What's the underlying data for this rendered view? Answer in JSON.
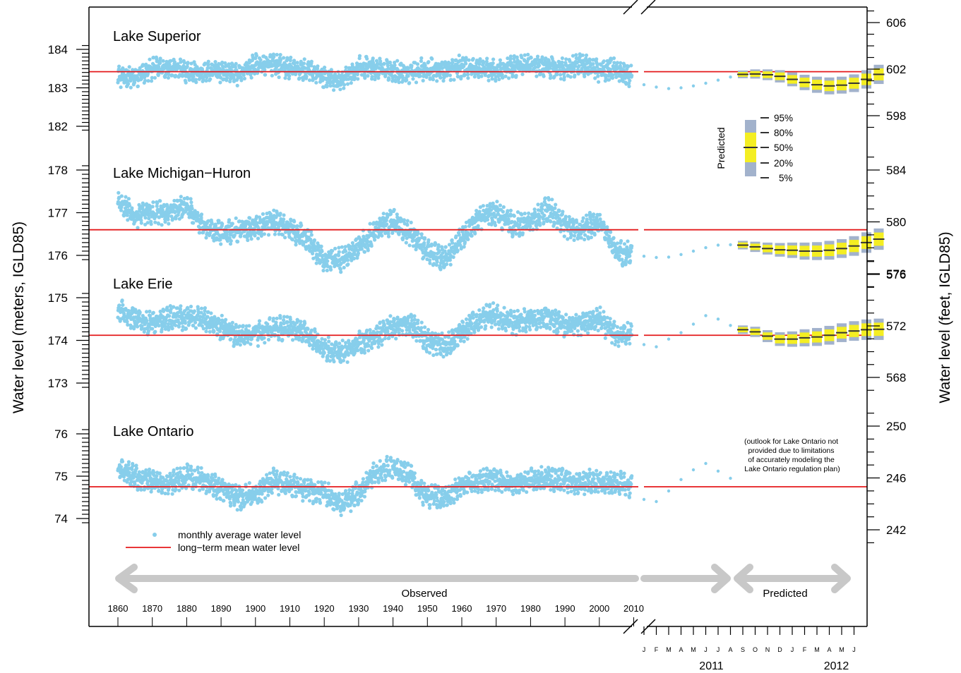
{
  "chart_data": {
    "type": "scatter",
    "ylabel_left": "Water level (meters, IGLD85)",
    "ylabel_right": "Water level (feet, IGLD85)",
    "x_years": {
      "start": 1860,
      "end": 2010,
      "tick_labels": [
        "1860",
        "1870",
        "1880",
        "1890",
        "1900",
        "1910",
        "1920",
        "1930",
        "1940",
        "1950",
        "1960",
        "1970",
        "1980",
        "1990",
        "2000",
        "2010"
      ]
    },
    "x_months": {
      "labels": [
        "J",
        "F",
        "M",
        "A",
        "M",
        "J",
        "J",
        "A",
        "S",
        "O",
        "N",
        "D",
        "J",
        "F",
        "M",
        "A",
        "M",
        "J"
      ],
      "year_labels": [
        "2011",
        "2012"
      ]
    },
    "phase_labels": {
      "observed": "Observed",
      "predicted": "Predicted"
    },
    "panels": [
      {
        "lake": "Lake Superior",
        "meter_ticks": [
          "182",
          "183",
          "184"
        ],
        "feet_ticks": [
          "598",
          "602",
          "606"
        ],
        "mean_m": 183.42,
        "observed_base_m": [
          183.3,
          183.25,
          183.5,
          183.55,
          183.4,
          183.4,
          183.45,
          183.35,
          183.6,
          183.6,
          183.5,
          183.45,
          183.3,
          183.15,
          183.55,
          183.5,
          183.45,
          183.4,
          183.5,
          183.45,
          183.55,
          183.5,
          183.45,
          183.55,
          183.6,
          183.55,
          183.5,
          183.6,
          183.45,
          183.5,
          183.25
        ],
        "observed_range_m": [
          182.8,
          184.0
        ],
        "outlook_2011_m": [
          183.08,
          183.02,
          182.98,
          183.0,
          183.05,
          183.12,
          183.2,
          183.28
        ],
        "predicted_m": [
          183.35,
          183.36,
          183.34,
          183.3,
          183.22,
          183.14,
          183.08,
          183.05,
          183.07,
          183.12,
          183.22,
          183.35
        ],
        "predicted_spread_m": [
          0.1,
          0.12,
          0.14,
          0.16,
          0.18,
          0.2,
          0.21,
          0.22,
          0.22,
          0.23,
          0.24,
          0.25
        ]
      },
      {
        "lake": "Lake Michigan−Huron",
        "meter_ticks": [
          "176",
          "177",
          "178"
        ],
        "feet_ticks": [
          "576",
          "580",
          "584"
        ],
        "mean_m": 176.6,
        "observed_base_m": [
          177.3,
          176.9,
          177.0,
          177.0,
          177.15,
          176.7,
          176.5,
          176.6,
          176.65,
          176.8,
          176.6,
          176.4,
          175.9,
          175.9,
          176.2,
          176.6,
          176.8,
          176.5,
          176.1,
          175.9,
          176.4,
          176.9,
          177.0,
          176.7,
          176.8,
          177.1,
          176.7,
          176.6,
          176.8,
          176.1,
          176.0
        ],
        "observed_range_m": [
          175.6,
          177.5
        ],
        "outlook_2011_m": [
          175.98,
          175.95,
          175.96,
          176.02,
          176.1,
          176.18,
          176.24,
          176.25
        ],
        "predicted_m": [
          176.24,
          176.2,
          176.16,
          176.13,
          176.12,
          176.1,
          176.1,
          176.12,
          176.16,
          176.22,
          176.3,
          176.38
        ],
        "predicted_spread_m": [
          0.1,
          0.12,
          0.14,
          0.16,
          0.18,
          0.2,
          0.21,
          0.22,
          0.22,
          0.23,
          0.24,
          0.25
        ]
      },
      {
        "lake": "Lake Erie",
        "meter_ticks": [
          "173",
          "174",
          "175"
        ],
        "feet_ticks": [
          "568",
          "572",
          "576"
        ],
        "mean_m": 174.12,
        "observed_base_m": [
          174.7,
          174.5,
          174.4,
          174.5,
          174.55,
          174.5,
          174.3,
          174.1,
          174.15,
          174.3,
          174.3,
          174.15,
          173.8,
          173.7,
          173.9,
          174.1,
          174.3,
          174.4,
          174.0,
          173.85,
          174.2,
          174.5,
          174.6,
          174.4,
          174.5,
          174.55,
          174.35,
          174.4,
          174.5,
          174.1,
          174.15
        ],
        "observed_range_m": [
          173.2,
          175.0
        ],
        "outlook_2011_m": [
          173.9,
          173.85,
          174.03,
          174.18,
          174.38,
          174.58,
          174.5,
          174.35
        ],
        "predicted_m": [
          174.25,
          174.2,
          174.1,
          174.03,
          174.03,
          174.06,
          174.08,
          174.12,
          174.18,
          174.22,
          174.25,
          174.26
        ],
        "predicted_spread_m": [
          0.1,
          0.12,
          0.14,
          0.16,
          0.18,
          0.2,
          0.21,
          0.22,
          0.22,
          0.23,
          0.24,
          0.25
        ]
      },
      {
        "lake": "Lake Ontario",
        "meter_ticks": [
          "74",
          "75",
          "76"
        ],
        "feet_ticks": [
          "242",
          "246",
          "250"
        ],
        "mean_m": 74.75,
        "observed_base_m": [
          75.2,
          75.0,
          74.9,
          74.8,
          75.0,
          74.9,
          74.7,
          74.5,
          74.55,
          74.9,
          74.8,
          74.7,
          74.6,
          74.3,
          74.6,
          75.1,
          75.2,
          75.0,
          74.5,
          74.5,
          74.8,
          74.9,
          74.95,
          74.8,
          74.9,
          74.95,
          74.9,
          74.85,
          74.9,
          74.8,
          74.8
        ],
        "observed_range_m": [
          73.8,
          75.8
        ],
        "outlook_2011_m": [
          74.45,
          74.4,
          74.65,
          74.92,
          75.15,
          75.3,
          75.12,
          74.95
        ],
        "note": "(outlook for Lake Ontario not provided due to limitations of accurately modeling the Lake Ontario regulation plan)"
      }
    ],
    "legend": {
      "items": [
        "monthly average water level",
        "long−term mean water level"
      ],
      "colors": [
        "#87ceeb",
        "#e41a1c"
      ]
    },
    "predicted_legend": {
      "title": "Predicted",
      "items": [
        "95%",
        "80%",
        "50%",
        "20%",
        "5%"
      ],
      "colors": {
        "outer": "#a2b2cc",
        "inner": "#f4ee22",
        "median": "#333333"
      }
    },
    "colors": {
      "observed": "#87ceeb",
      "mean": "#e41a1c",
      "arrow": "#c8c8c8",
      "band_outer": "#a2b2cc",
      "band_inner": "#f4ee22",
      "median": "#333333"
    }
  }
}
